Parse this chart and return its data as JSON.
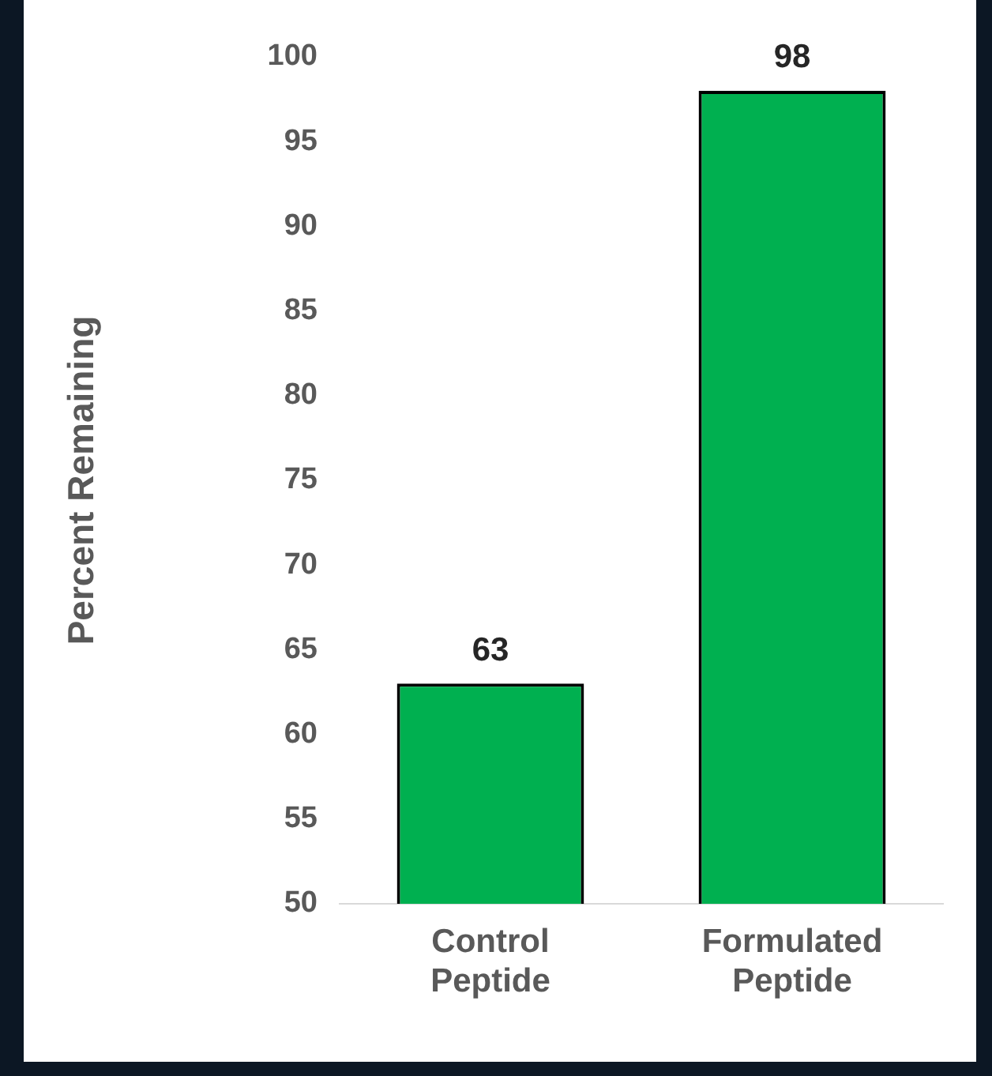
{
  "chart_data": {
    "type": "bar",
    "ylabel": "Percent Remaining",
    "categories": [
      "Control Peptide",
      "Formulated Peptide"
    ],
    "values": [
      63,
      98
    ],
    "color": "#00b050",
    "ylim": [
      50,
      100
    ],
    "yticks": [
      50,
      55,
      60,
      65,
      70,
      75,
      80,
      85,
      90,
      95,
      100
    ],
    "grid": false,
    "legend": false,
    "data_labels": true
  }
}
